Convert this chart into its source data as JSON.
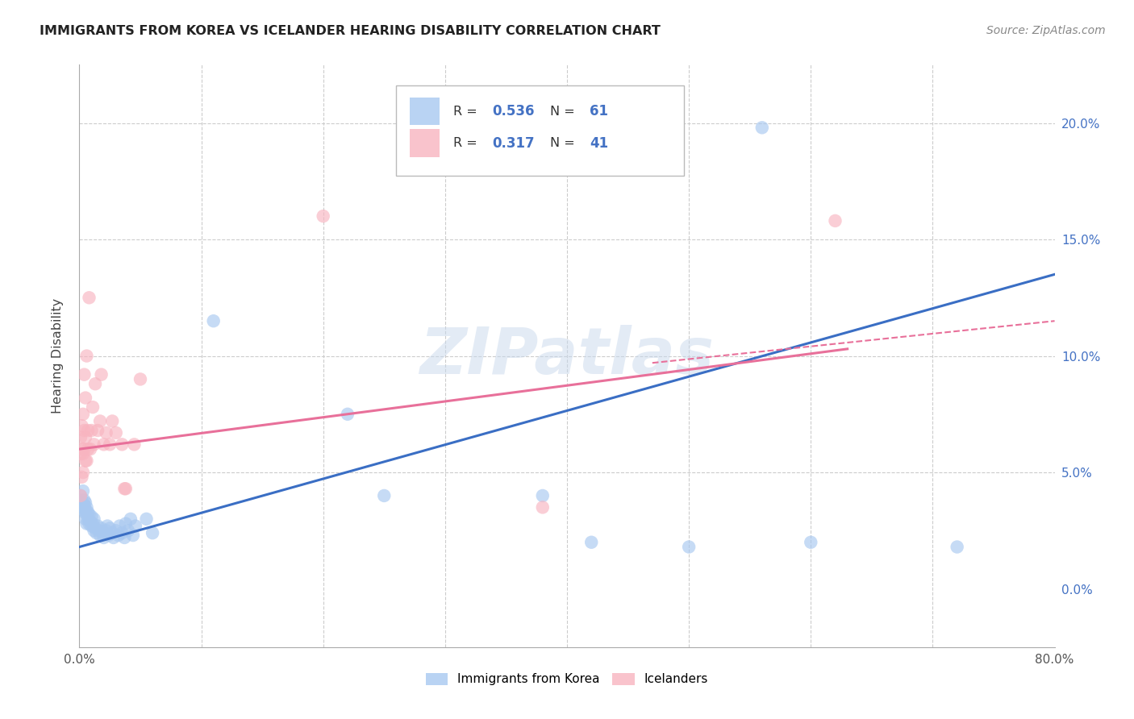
{
  "title": "IMMIGRANTS FROM KOREA VS ICELANDER HEARING DISABILITY CORRELATION CHART",
  "source": "Source: ZipAtlas.com",
  "ylabel": "Hearing Disability",
  "xlim": [
    0.0,
    0.8
  ],
  "ylim": [
    -0.025,
    0.225
  ],
  "legend_entry1": {
    "label": "Immigrants from Korea",
    "R": "0.536",
    "N": "61",
    "color": "#A8C8F0"
  },
  "legend_entry2": {
    "label": "Icelanders",
    "R": "0.317",
    "N": "41",
    "color": "#F8B4C0"
  },
  "korea_color": "#A8C8F0",
  "iceland_color": "#F8B4C0",
  "korea_line_color": "#3A6EC4",
  "iceland_line_color": "#E8709A",
  "watermark": "ZIPatlas",
  "korea_R_color": "#4472C4",
  "iceland_R_color": "#4472C4",
  "korea_points": [
    [
      0.001,
      0.037
    ],
    [
      0.001,
      0.04
    ],
    [
      0.002,
      0.038
    ],
    [
      0.002,
      0.036
    ],
    [
      0.003,
      0.035
    ],
    [
      0.003,
      0.034
    ],
    [
      0.003,
      0.042
    ],
    [
      0.004,
      0.033
    ],
    [
      0.004,
      0.036
    ],
    [
      0.004,
      0.038
    ],
    [
      0.005,
      0.03
    ],
    [
      0.005,
      0.034
    ],
    [
      0.005,
      0.037
    ],
    [
      0.006,
      0.028
    ],
    [
      0.006,
      0.032
    ],
    [
      0.006,
      0.035
    ],
    [
      0.007,
      0.03
    ],
    [
      0.007,
      0.033
    ],
    [
      0.008,
      0.028
    ],
    [
      0.008,
      0.032
    ],
    [
      0.009,
      0.029
    ],
    [
      0.01,
      0.027
    ],
    [
      0.01,
      0.031
    ],
    [
      0.011,
      0.028
    ],
    [
      0.012,
      0.025
    ],
    [
      0.012,
      0.03
    ],
    [
      0.013,
      0.026
    ],
    [
      0.014,
      0.024
    ],
    [
      0.015,
      0.027
    ],
    [
      0.016,
      0.025
    ],
    [
      0.017,
      0.023
    ],
    [
      0.018,
      0.026
    ],
    [
      0.02,
      0.024
    ],
    [
      0.02,
      0.022
    ],
    [
      0.022,
      0.025
    ],
    [
      0.023,
      0.027
    ],
    [
      0.024,
      0.023
    ],
    [
      0.025,
      0.026
    ],
    [
      0.027,
      0.024
    ],
    [
      0.028,
      0.022
    ],
    [
      0.03,
      0.025
    ],
    [
      0.032,
      0.023
    ],
    [
      0.033,
      0.027
    ],
    [
      0.035,
      0.024
    ],
    [
      0.037,
      0.022
    ],
    [
      0.038,
      0.028
    ],
    [
      0.04,
      0.025
    ],
    [
      0.042,
      0.03
    ],
    [
      0.044,
      0.023
    ],
    [
      0.046,
      0.027
    ],
    [
      0.055,
      0.03
    ],
    [
      0.06,
      0.024
    ],
    [
      0.11,
      0.115
    ],
    [
      0.22,
      0.075
    ],
    [
      0.25,
      0.04
    ],
    [
      0.38,
      0.04
    ],
    [
      0.42,
      0.02
    ],
    [
      0.5,
      0.018
    ],
    [
      0.56,
      0.198
    ],
    [
      0.6,
      0.02
    ],
    [
      0.72,
      0.018
    ]
  ],
  "iceland_points": [
    [
      0.001,
      0.04
    ],
    [
      0.001,
      0.058
    ],
    [
      0.001,
      0.065
    ],
    [
      0.002,
      0.048
    ],
    [
      0.002,
      0.06
    ],
    [
      0.002,
      0.07
    ],
    [
      0.003,
      0.05
    ],
    [
      0.003,
      0.058
    ],
    [
      0.003,
      0.075
    ],
    [
      0.004,
      0.06
    ],
    [
      0.004,
      0.068
    ],
    [
      0.004,
      0.092
    ],
    [
      0.005,
      0.055
    ],
    [
      0.005,
      0.065
    ],
    [
      0.005,
      0.082
    ],
    [
      0.006,
      0.055
    ],
    [
      0.006,
      0.1
    ],
    [
      0.007,
      0.06
    ],
    [
      0.007,
      0.068
    ],
    [
      0.008,
      0.125
    ],
    [
      0.009,
      0.06
    ],
    [
      0.01,
      0.068
    ],
    [
      0.011,
      0.078
    ],
    [
      0.012,
      0.062
    ],
    [
      0.013,
      0.088
    ],
    [
      0.015,
      0.068
    ],
    [
      0.017,
      0.072
    ],
    [
      0.018,
      0.092
    ],
    [
      0.02,
      0.062
    ],
    [
      0.022,
      0.067
    ],
    [
      0.025,
      0.062
    ],
    [
      0.027,
      0.072
    ],
    [
      0.03,
      0.067
    ],
    [
      0.035,
      0.062
    ],
    [
      0.037,
      0.043
    ],
    [
      0.038,
      0.043
    ],
    [
      0.045,
      0.062
    ],
    [
      0.05,
      0.09
    ],
    [
      0.2,
      0.16
    ],
    [
      0.38,
      0.035
    ],
    [
      0.62,
      0.158
    ]
  ],
  "korea_line": {
    "x0": 0.0,
    "y0": 0.018,
    "x1": 0.8,
    "y1": 0.135
  },
  "iceland_solid_line": {
    "x0": 0.0,
    "y0": 0.06,
    "x1": 0.63,
    "y1": 0.103
  },
  "iceland_dashed_line": {
    "x0": 0.47,
    "y0": 0.097,
    "x1": 0.8,
    "y1": 0.115
  }
}
